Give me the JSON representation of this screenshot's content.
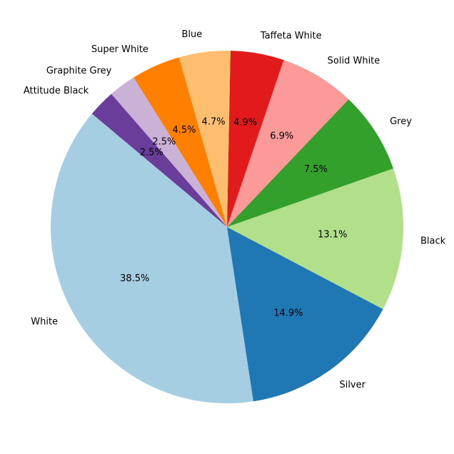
{
  "chart_data": {
    "type": "pie",
    "title": "",
    "start_angle": 140,
    "direction": "counterclockwise",
    "slices": [
      {
        "label": "White",
        "value": 38.5,
        "pct_label": "38.5%",
        "color": "#a6cee3"
      },
      {
        "label": "Silver",
        "value": 14.9,
        "pct_label": "14.9%",
        "color": "#1f78b4"
      },
      {
        "label": "Black",
        "value": 13.1,
        "pct_label": "13.1%",
        "color": "#b2df8a"
      },
      {
        "label": "Grey",
        "value": 7.5,
        "pct_label": "7.5%",
        "color": "#33a02c"
      },
      {
        "label": "Solid White",
        "value": 6.9,
        "pct_label": "6.9%",
        "color": "#fb9a99"
      },
      {
        "label": "Taffeta White",
        "value": 4.9,
        "pct_label": "4.9%",
        "color": "#e31a1c"
      },
      {
        "label": "Blue",
        "value": 4.7,
        "pct_label": "4.7%",
        "color": "#fdbf6f"
      },
      {
        "label": "Super White",
        "value": 4.5,
        "pct_label": "4.5%",
        "color": "#ff7f00"
      },
      {
        "label": "Graphite Grey",
        "value": 2.5,
        "pct_label": "2.5%",
        "color": "#cab2d6"
      },
      {
        "label": "Attitude Black",
        "value": 2.5,
        "pct_label": "2.5%",
        "color": "#6a3d9a"
      }
    ]
  }
}
